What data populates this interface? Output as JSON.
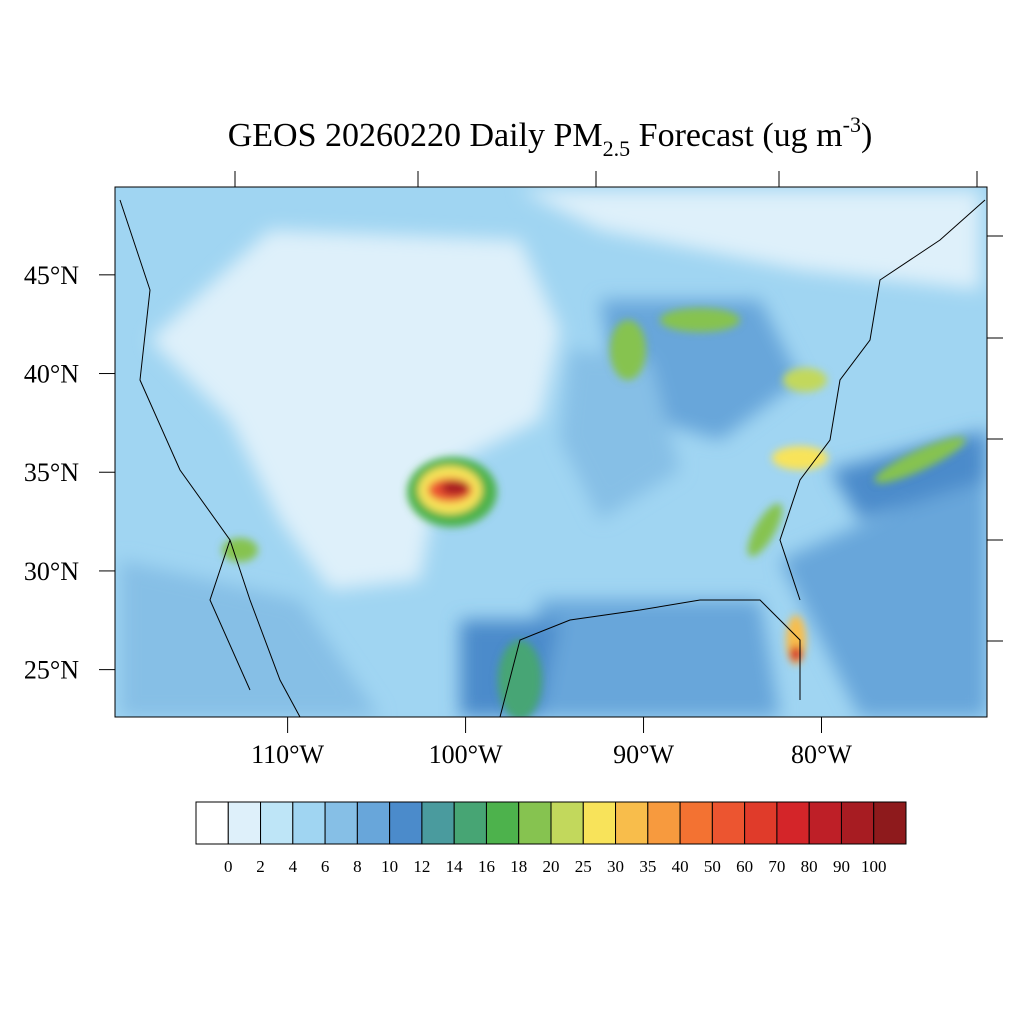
{
  "chart_data": {
    "type": "contour-map",
    "title": [
      "GEOS 20260220 Daily PM",
      "2.5",
      " Forecast (ug m",
      "-3",
      ")"
    ],
    "xlim": [
      -119.7,
      -70.7
    ],
    "ylim": [
      22.6,
      49.45
    ],
    "xticks": [
      {
        "value": -110,
        "label": "110°W"
      },
      {
        "value": -100,
        "label": "100°W"
      },
      {
        "value": -90,
        "label": "90°W"
      },
      {
        "value": -80,
        "label": "80°W"
      }
    ],
    "yticks": [
      {
        "value": 25,
        "label": "25°N"
      },
      {
        "value": 30,
        "label": "30°N"
      },
      {
        "value": 35,
        "label": "35°N"
      },
      {
        "value": 40,
        "label": "40°N"
      },
      {
        "value": 45,
        "label": "45°N"
      }
    ],
    "colorbar": {
      "levels": [
        0,
        2,
        4,
        6,
        8,
        10,
        12,
        14,
        16,
        18,
        20,
        25,
        30,
        35,
        40,
        50,
        60,
        70,
        80,
        90,
        100
      ],
      "colors": [
        "#ffffff",
        "#def0fa",
        "#bee5f7",
        "#a0d5f2",
        "#86bfe6",
        "#68a6da",
        "#4b8bcb",
        "#4a9b9e",
        "#47a574",
        "#4db24c",
        "#86c350",
        "#c2d85c",
        "#f8e35a",
        "#f8bd4b",
        "#f79a3e",
        "#f37232",
        "#ec5530",
        "#e03b2a",
        "#d42529",
        "#be1f27",
        "#a71c22",
        "#8e1a1c"
      ]
    }
  }
}
